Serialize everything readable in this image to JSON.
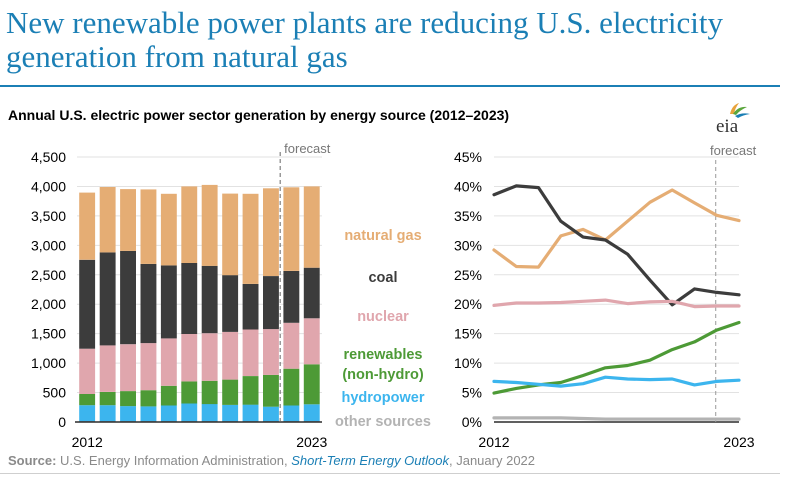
{
  "headline": "New renewable power plants are reducing U.S. electricity generation from natural gas",
  "subtitle": "Annual U.S. electric power sector generation by energy source (2012–2023)",
  "logo_text": "eia",
  "source": {
    "label": "Source:",
    "text": " U.S. Energy Information Administration, ",
    "publication": "Short-Term Energy Outlook",
    "date": ", January 2022"
  },
  "colors": {
    "natural_gas": "#e5ad74",
    "coal": "#3c3c3c",
    "nuclear": "#e0a6ad",
    "renewables": "#4d9a36",
    "hydropower": "#3cb5ee",
    "other": "#b3b3b3"
  },
  "chart_data": [
    {
      "type": "bar",
      "stacked": true,
      "categories": [
        "2012",
        "2013",
        "2014",
        "2015",
        "2016",
        "2017",
        "2018",
        "2019",
        "2020",
        "2021",
        "2022",
        "2023"
      ],
      "x_tick_labels": [
        "2012",
        "2023"
      ],
      "y_ticks": [
        "0",
        "500",
        "1,000",
        "1,500",
        "2,000",
        "2,500",
        "3,000",
        "3,500",
        "4,000",
        "4,500"
      ],
      "ylim": [
        0,
        4500
      ],
      "forecast_label": "forecast",
      "forecast_start": "2022",
      "series": [
        {
          "name": "other sources",
          "values": [
            15,
            15,
            15,
            15,
            15,
            15,
            15,
            15,
            15,
            15,
            15,
            15
          ]
        },
        {
          "name": "hydropower",
          "values": [
            270,
            270,
            255,
            250,
            265,
            300,
            290,
            275,
            280,
            245,
            265,
            285
          ]
        },
        {
          "name": "renewables\n(non-hydro)",
          "values": [
            190,
            225,
            255,
            275,
            335,
            375,
            395,
            430,
            485,
            540,
            625,
            680
          ]
        },
        {
          "name": "nuclear",
          "values": [
            770,
            790,
            795,
            800,
            805,
            805,
            807,
            809,
            790,
            778,
            780,
            780
          ]
        },
        {
          "name": "coal",
          "values": [
            1510,
            1580,
            1585,
            1345,
            1240,
            1205,
            1145,
            965,
            775,
            900,
            880,
            860
          ]
        },
        {
          "name": "natural gas",
          "values": [
            1140,
            1110,
            1050,
            1265,
            1215,
            1300,
            1375,
            1385,
            1530,
            1490,
            1420,
            1380
          ]
        }
      ]
    },
    {
      "type": "line",
      "x": [
        "2012",
        "2013",
        "2014",
        "2015",
        "2016",
        "2017",
        "2018",
        "2019",
        "2020",
        "2021",
        "2022",
        "2023"
      ],
      "x_tick_labels": [
        "2012",
        "2023"
      ],
      "y_ticks": [
        "0%",
        "5%",
        "10%",
        "15%",
        "20%",
        "25%",
        "30%",
        "35%",
        "40%",
        "45%"
      ],
      "ylim": [
        0,
        45
      ],
      "forecast_label": "forecast",
      "forecast_start": "2022",
      "series": [
        {
          "name": "natural gas",
          "values": [
            29.2,
            26.4,
            26.3,
            31.6,
            32.7,
            30.9,
            34.1,
            37.3,
            39.4,
            37.2,
            35.1,
            34.2
          ]
        },
        {
          "name": "coal",
          "values": [
            38.6,
            40.1,
            39.8,
            34.1,
            31.4,
            30.9,
            28.5,
            24.1,
            19.9,
            22.6,
            22.0,
            21.6
          ]
        },
        {
          "name": "nuclear",
          "values": [
            19.8,
            20.2,
            20.2,
            20.3,
            20.5,
            20.7,
            20.1,
            20.4,
            20.5,
            19.6,
            19.7,
            19.7
          ]
        },
        {
          "name": "renewables\n(non-hydro)",
          "values": [
            4.9,
            5.7,
            6.3,
            6.7,
            7.9,
            9.2,
            9.6,
            10.5,
            12.3,
            13.6,
            15.6,
            16.9
          ]
        },
        {
          "name": "hydropower",
          "values": [
            6.9,
            6.7,
            6.4,
            6.1,
            6.5,
            7.6,
            7.3,
            7.2,
            7.3,
            6.3,
            6.9,
            7.1
          ]
        },
        {
          "name": "other sources",
          "values": [
            0.7,
            0.7,
            0.7,
            0.7,
            0.6,
            0.5,
            0.5,
            0.5,
            0.5,
            0.5,
            0.5,
            0.5
          ]
        }
      ]
    }
  ]
}
